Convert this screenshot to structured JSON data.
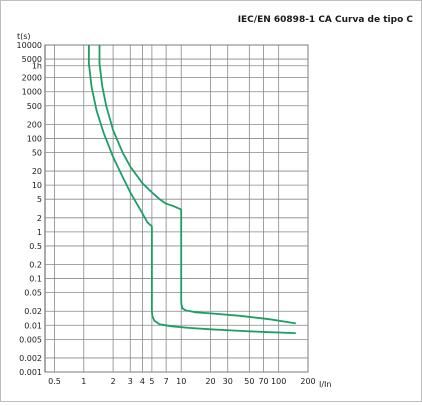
{
  "chart_data": {
    "type": "line",
    "title": "IEC/EN 60898-1 CA Curva de tipo C",
    "xlabel": "I/In",
    "ylabel": "t(s)",
    "x_scale": "log",
    "y_scale": "log",
    "xlim": [
      0.4,
      200
    ],
    "ylim": [
      0.001,
      10000
    ],
    "grid": true,
    "line_color": "#1aa067",
    "x_ticks": [
      {
        "value": 0.5,
        "label": "0.5"
      },
      {
        "value": 1,
        "label": "1"
      },
      {
        "value": 2,
        "label": "2"
      },
      {
        "value": 3,
        "label": "3"
      },
      {
        "value": 4,
        "label": "4"
      },
      {
        "value": 5,
        "label": "5"
      },
      {
        "value": 7,
        "label": "7"
      },
      {
        "value": 10,
        "label": "10"
      },
      {
        "value": 20,
        "label": "20"
      },
      {
        "value": 30,
        "label": "30"
      },
      {
        "value": 50,
        "label": "50"
      },
      {
        "value": 70,
        "label": "70"
      },
      {
        "value": 100,
        "label": "100"
      },
      {
        "value": 200,
        "label": "200"
      }
    ],
    "y_ticks": [
      {
        "value": 10000,
        "label": "10000"
      },
      {
        "value": 5000,
        "label": "5000"
      },
      {
        "value": 3600,
        "label": "1h"
      },
      {
        "value": 2000,
        "label": "2000"
      },
      {
        "value": 1000,
        "label": "1000"
      },
      {
        "value": 500,
        "label": "500"
      },
      {
        "value": 200,
        "label": "200"
      },
      {
        "value": 100,
        "label": "100"
      },
      {
        "value": 50,
        "label": "50"
      },
      {
        "value": 20,
        "label": "20"
      },
      {
        "value": 10,
        "label": "10"
      },
      {
        "value": 5,
        "label": "5"
      },
      {
        "value": 2,
        "label": "2"
      },
      {
        "value": 1,
        "label": "1"
      },
      {
        "value": 0.5,
        "label": "0.5"
      },
      {
        "value": 0.2,
        "label": "0.2"
      },
      {
        "value": 0.1,
        "label": "0.1"
      },
      {
        "value": 0.05,
        "label": "0.05"
      },
      {
        "value": 0.02,
        "label": "0.02"
      },
      {
        "value": 0.01,
        "label": "0.01"
      },
      {
        "value": 0.005,
        "label": "0.005"
      },
      {
        "value": 0.002,
        "label": "0.002"
      },
      {
        "value": 0.001,
        "label": "0.001"
      }
    ],
    "series": [
      {
        "x": [
          1.13,
          1.13,
          1.2,
          1.35,
          1.6,
          2.0,
          2.5,
          3.0,
          3.5,
          4.0,
          4.5,
          5.0,
          5.0,
          5.05,
          5.3,
          6.0,
          8.0,
          12,
          20,
          40,
          80,
          150
        ],
        "y": [
          10000,
          4000,
          1300,
          400,
          130,
          40,
          15,
          7,
          4,
          2.5,
          1.6,
          1.3,
          0.02,
          0.016,
          0.0125,
          0.0105,
          0.0095,
          0.0088,
          0.0082,
          0.0076,
          0.0071,
          0.0068
        ]
      },
      {
        "x": [
          1.45,
          1.45,
          1.55,
          1.7,
          2.0,
          2.5,
          3.0,
          4.0,
          5.0,
          6.0,
          7.0,
          8.5,
          10.0,
          10.0,
          10.05,
          10.3,
          11,
          14,
          20,
          40,
          80,
          150
        ],
        "y": [
          10000,
          4000,
          1300,
          500,
          150,
          50,
          25,
          11,
          7,
          5,
          4,
          3.5,
          3.0,
          0.035,
          0.028,
          0.023,
          0.021,
          0.019,
          0.018,
          0.016,
          0.0135,
          0.011
        ]
      }
    ]
  }
}
